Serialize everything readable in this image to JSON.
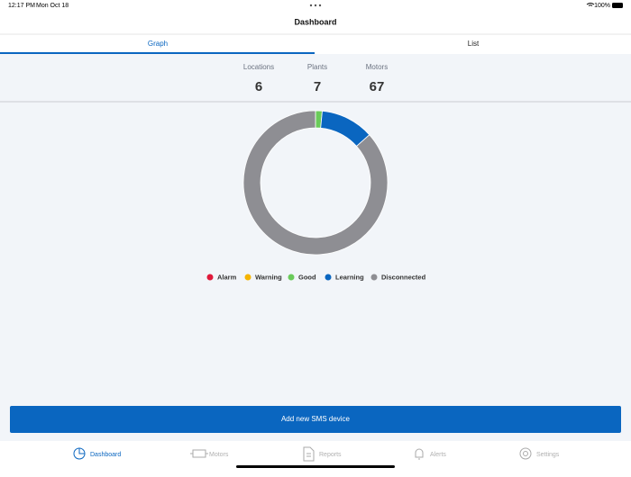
{
  "status_bar": {
    "time": "12:17 PM",
    "date": "Mon Oct 18",
    "battery": "100%"
  },
  "header": {
    "title": "Dashboard"
  },
  "tabs": [
    "Graph",
    "List"
  ],
  "stats": [
    {
      "label": "Locations",
      "value": 6
    },
    {
      "label": "Plants",
      "value": 7
    },
    {
      "label": "Motors",
      "value": 67
    }
  ],
  "chart_data": {
    "type": "donut",
    "categories": [
      "Alarm",
      "Warning",
      "Good",
      "Learning",
      "Disconnected"
    ],
    "values": [
      0,
      0,
      1,
      8,
      58
    ],
    "colors": [
      "#e0193a",
      "#f5b400",
      "#6acb5a",
      "#0a66c0",
      "#8e8e93"
    ]
  },
  "button": {
    "label": "Add new SMS device"
  },
  "tab_bar": [
    "Dashboard",
    "Motors",
    "Reports",
    "Alerts",
    "Settings"
  ]
}
